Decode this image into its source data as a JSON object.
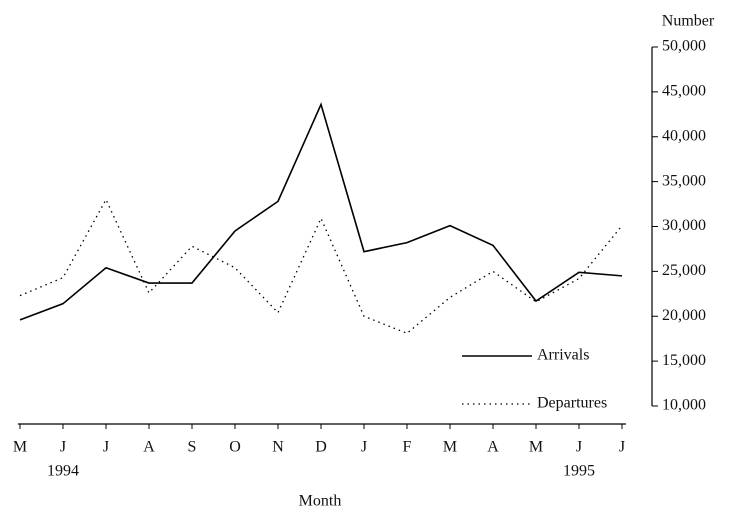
{
  "chart_data": {
    "type": "line",
    "x_label": "Month",
    "y_label": "Number",
    "categories": [
      "M",
      "J",
      "J",
      "A",
      "S",
      "O",
      "N",
      "D",
      "J",
      "F",
      "M",
      "A",
      "M",
      "J",
      "J"
    ],
    "category_sublabels": [
      null,
      "1994",
      null,
      null,
      null,
      null,
      null,
      null,
      null,
      null,
      null,
      null,
      null,
      "1995",
      null
    ],
    "series": [
      {
        "name": "Arrivals",
        "color": "#000000",
        "style": "solid",
        "values": [
          19600,
          21400,
          25400,
          23700,
          23700,
          29500,
          32800,
          43600,
          27200,
          28200,
          30100,
          27900,
          21700,
          24900,
          24500
        ]
      },
      {
        "name": "Departures",
        "color": "#000000",
        "style": "dotted",
        "values": [
          22300,
          24300,
          33000,
          22600,
          27800,
          25400,
          20400,
          30900,
          20000,
          18100,
          22100,
          25000,
          21600,
          24200,
          30100
        ]
      }
    ],
    "ylim": [
      10000,
      50000
    ],
    "yticks": [
      {
        "value": 10000,
        "label": "10,000"
      },
      {
        "value": 15000,
        "label": "15,000"
      },
      {
        "value": 20000,
        "label": "20,000"
      },
      {
        "value": 25000,
        "label": "25,000"
      },
      {
        "value": 30000,
        "label": "30,000"
      },
      {
        "value": 35000,
        "label": "35,000"
      },
      {
        "value": 40000,
        "label": "40,000"
      },
      {
        "value": 45000,
        "label": "45,000"
      },
      {
        "value": 50000,
        "label": "50,000"
      }
    ],
    "y_axis_side": "right",
    "grid": false,
    "legend": "lower right"
  }
}
